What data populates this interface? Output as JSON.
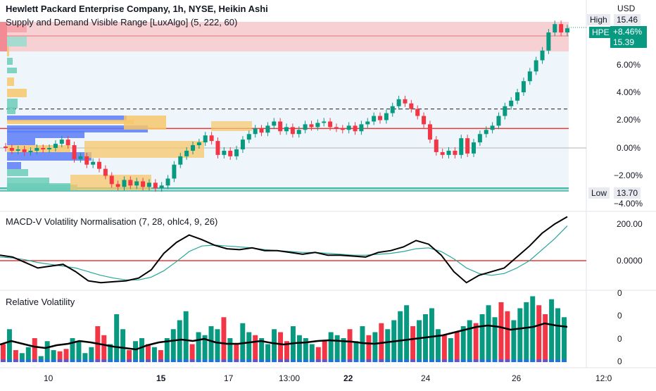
{
  "title": "Hewlett Packard Enterprise Company, 1h, NYSE, Heikin Ashi",
  "indicator1": "Supply and Demand Visible Range [LuxAlgo] (5, 222, 60)",
  "indicator2": "MACD-V Volatility Normalisation (7, 28, ohlc4, 9, 26)",
  "indicator3": "Relative Volatility",
  "currency": "USD",
  "high_label": "High",
  "high_value": "15.46",
  "low_label": "Low",
  "low_value": "13.70",
  "symbol": "HPE",
  "change": "+8.46%",
  "last_price": "15.39",
  "price_axis": [
    "6.00%",
    "4.00%",
    "2.00%",
    "0.00%",
    "−2.00%",
    "−4.00%"
  ],
  "macd_axis": [
    "200.00",
    "0.0000"
  ],
  "vol_axis": [
    "0",
    "0",
    "0",
    "0"
  ],
  "time_axis": [
    "10",
    "15",
    "17",
    "13:00",
    "22",
    "24",
    "26",
    "12:0"
  ],
  "colors": {
    "up": "#089981",
    "down": "#f23645",
    "supply": "#f7d0d4",
    "demand": "#22ab94",
    "macd": "#000000",
    "signal": "#26a69a"
  },
  "chart_data": {
    "type": "candlestick",
    "price_pct_range": [
      -4,
      9
    ],
    "candles_pct": [
      [
        0.1,
        0.0
      ],
      [
        0.0,
        -0.2
      ],
      [
        -0.2,
        -0.1
      ],
      [
        -0.1,
        -0.3
      ],
      [
        -0.3,
        -0.2
      ],
      [
        -0.2,
        0.0
      ],
      [
        0.0,
        -0.1
      ],
      [
        -0.1,
        0.0
      ],
      [
        0.0,
        0.3
      ],
      [
        0.3,
        0.6
      ],
      [
        0.6,
        0.2
      ],
      [
        0.2,
        -0.8
      ],
      [
        -0.8,
        -0.6
      ],
      [
        -0.6,
        -1.2
      ],
      [
        -1.2,
        -1.0
      ],
      [
        -1.0,
        -1.5
      ],
      [
        -1.5,
        -2.0
      ],
      [
        -2.0,
        -2.6
      ],
      [
        -2.6,
        -2.8
      ],
      [
        -2.8,
        -2.3
      ],
      [
        -2.3,
        -2.7
      ],
      [
        -2.7,
        -2.4
      ],
      [
        -2.4,
        -2.8
      ],
      [
        -2.8,
        -2.5
      ],
      [
        -2.5,
        -2.9
      ],
      [
        -2.9,
        -2.7
      ],
      [
        -2.7,
        -2.2
      ],
      [
        -2.2,
        -1.2
      ],
      [
        -1.2,
        -0.6
      ],
      [
        -0.6,
        -0.2
      ],
      [
        -0.2,
        0.2
      ],
      [
        0.2,
        0.4
      ],
      [
        0.4,
        0.9
      ],
      [
        0.9,
        0.5
      ],
      [
        0.5,
        -0.5
      ],
      [
        -0.5,
        -0.2
      ],
      [
        -0.2,
        -0.6
      ],
      [
        -0.6,
        -0.1
      ],
      [
        -0.1,
        0.6
      ],
      [
        0.6,
        1.0
      ],
      [
        1.0,
        1.4
      ],
      [
        1.4,
        1.1
      ],
      [
        1.1,
        1.6
      ],
      [
        1.6,
        1.9
      ],
      [
        1.9,
        1.2
      ],
      [
        1.2,
        1.5
      ],
      [
        1.5,
        1.0
      ],
      [
        1.0,
        1.3
      ],
      [
        1.3,
        1.7
      ],
      [
        1.7,
        1.5
      ],
      [
        1.5,
        1.8
      ],
      [
        1.8,
        1.9
      ],
      [
        1.9,
        1.5
      ],
      [
        1.5,
        1.4
      ],
      [
        1.4,
        1.3
      ],
      [
        1.3,
        1.6
      ],
      [
        1.6,
        1.2
      ],
      [
        1.2,
        1.7
      ],
      [
        1.7,
        1.9
      ],
      [
        1.9,
        2.3
      ],
      [
        2.3,
        2.0
      ],
      [
        2.0,
        2.5
      ],
      [
        2.5,
        3.0
      ],
      [
        3.0,
        3.5
      ],
      [
        3.5,
        3.2
      ],
      [
        3.2,
        2.8
      ],
      [
        2.8,
        2.3
      ],
      [
        2.3,
        1.7
      ],
      [
        1.7,
        0.6
      ],
      [
        0.6,
        -0.3
      ],
      [
        -0.3,
        -0.5
      ],
      [
        -0.5,
        -0.2
      ],
      [
        -0.2,
        -0.5
      ],
      [
        -0.5,
        0.7
      ],
      [
        0.7,
        -0.4
      ],
      [
        -0.4,
        0.4
      ],
      [
        0.4,
        1.0
      ],
      [
        1.0,
        1.3
      ],
      [
        1.3,
        1.6
      ],
      [
        1.6,
        2.3
      ],
      [
        2.3,
        3.0
      ],
      [
        3.0,
        3.4
      ],
      [
        3.4,
        4.0
      ],
      [
        4.0,
        4.8
      ],
      [
        4.8,
        5.5
      ],
      [
        5.5,
        6.3
      ],
      [
        6.3,
        7.0
      ],
      [
        7.0,
        8.3
      ],
      [
        8.3,
        8.9
      ],
      [
        8.9,
        8.3
      ],
      [
        8.3,
        8.6
      ]
    ],
    "levels_pct": [
      1.4,
      2.8
    ],
    "macd": [
      30,
      20,
      -10,
      -40,
      -30,
      -20,
      -60,
      -110,
      -120,
      -115,
      -110,
      -95,
      -50,
      40,
      100,
      140,
      115,
      85,
      65,
      60,
      70,
      55,
      55,
      45,
      35,
      45,
      30,
      30,
      25,
      20,
      45,
      55,
      75,
      110,
      90,
      30,
      -60,
      -120,
      -80,
      -60,
      -40,
      20,
      80,
      150,
      200,
      240
    ],
    "signal": [
      20,
      15,
      5,
      -10,
      -20,
      -30,
      -40,
      -60,
      -80,
      -95,
      -105,
      -105,
      -90,
      -55,
      -5,
      50,
      80,
      85,
      80,
      75,
      70,
      60,
      55,
      50,
      45,
      45,
      40,
      35,
      30,
      30,
      35,
      40,
      50,
      65,
      70,
      50,
      10,
      -40,
      -70,
      -80,
      -70,
      -40,
      0,
      60,
      120,
      190
    ],
    "macd_range": [
      -150,
      250
    ],
    "vol_bars": [
      30,
      55,
      20,
      15,
      25,
      40,
      10,
      35,
      20,
      18,
      22,
      40,
      35,
      15,
      25,
      60,
      45,
      30,
      80,
      55,
      20,
      35,
      40,
      30,
      25,
      20,
      40,
      55,
      70,
      85,
      30,
      50,
      45,
      60,
      55,
      75,
      40,
      30,
      65,
      50,
      45,
      40,
      30,
      55,
      50,
      35,
      60,
      45,
      40,
      30,
      25,
      35,
      50,
      45,
      40,
      55,
      35,
      60,
      45,
      50,
      65,
      55,
      70,
      85,
      95,
      60,
      70,
      80,
      90,
      55,
      45,
      40,
      50,
      60,
      70,
      65,
      80,
      95,
      75,
      100,
      85,
      70,
      90,
      100,
      110,
      95,
      80,
      105,
      90,
      75
    ],
    "vol_line": [
      25,
      30,
      26,
      22,
      20,
      24,
      26,
      30,
      28,
      25,
      22,
      20,
      18,
      24,
      28,
      30,
      32,
      30,
      33,
      28,
      26,
      26,
      28,
      30,
      27,
      25,
      27,
      28,
      30,
      31,
      30,
      29,
      27,
      26,
      28,
      30,
      32,
      34,
      36,
      38,
      42,
      46,
      50,
      52,
      50,
      46,
      48,
      50,
      55,
      52,
      50
    ]
  }
}
